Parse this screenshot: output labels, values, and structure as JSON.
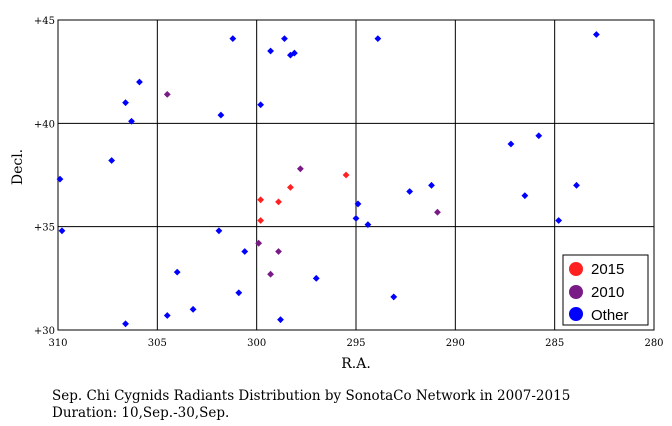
{
  "chart_data": {
    "type": "scatter",
    "xlabel": "R.A.",
    "ylabel": "Decl.",
    "xlim": [
      310,
      280
    ],
    "ylim": [
      30,
      45
    ],
    "x_reversed": true,
    "x_ticks": [
      310,
      305,
      300,
      295,
      290,
      285,
      280
    ],
    "x_tick_labels": [
      "310",
      "305",
      "300",
      "295",
      "290",
      "285",
      "280"
    ],
    "y_ticks": [
      30,
      35,
      40,
      45
    ],
    "y_tick_labels": [
      "+30",
      "+35",
      "+40",
      "+45"
    ],
    "grid": true,
    "legend_position": "bottom-right",
    "series": [
      {
        "name": "2015",
        "color": "#ff2020",
        "points": [
          [
            299.8,
            36.3
          ],
          [
            299.8,
            35.3
          ],
          [
            298.9,
            36.2
          ],
          [
            298.3,
            36.9
          ],
          [
            295.5,
            37.5
          ]
        ]
      },
      {
        "name": "2010",
        "color": "#7a1a86",
        "points": [
          [
            304.5,
            41.4
          ],
          [
            297.8,
            37.8
          ],
          [
            299.9,
            34.2
          ],
          [
            298.9,
            33.8
          ],
          [
            299.3,
            32.7
          ],
          [
            290.9,
            35.7
          ]
        ]
      },
      {
        "name": "Other",
        "color": "#0000ff",
        "points": [
          [
            309.9,
            37.3
          ],
          [
            309.8,
            34.8
          ],
          [
            307.3,
            38.2
          ],
          [
            306.6,
            41.0
          ],
          [
            306.3,
            40.1
          ],
          [
            305.9,
            42.0
          ],
          [
            304.5,
            30.7
          ],
          [
            306.6,
            30.3
          ],
          [
            304.0,
            32.8
          ],
          [
            303.2,
            31.0
          ],
          [
            301.8,
            40.4
          ],
          [
            301.9,
            34.8
          ],
          [
            301.2,
            44.1
          ],
          [
            300.9,
            31.8
          ],
          [
            300.6,
            33.8
          ],
          [
            299.8,
            40.9
          ],
          [
            299.3,
            43.5
          ],
          [
            298.6,
            44.1
          ],
          [
            298.3,
            43.3
          ],
          [
            298.1,
            43.4
          ],
          [
            298.8,
            30.5
          ],
          [
            297.0,
            32.5
          ],
          [
            294.9,
            36.1
          ],
          [
            295.0,
            35.4
          ],
          [
            294.4,
            35.1
          ],
          [
            293.9,
            44.1
          ],
          [
            293.1,
            31.6
          ],
          [
            292.3,
            36.7
          ],
          [
            291.2,
            37.0
          ],
          [
            287.2,
            39.0
          ],
          [
            286.5,
            36.5
          ],
          [
            285.8,
            39.4
          ],
          [
            284.8,
            35.3
          ],
          [
            283.9,
            37.0
          ],
          [
            282.9,
            44.3
          ]
        ]
      }
    ],
    "caption": [
      "Sep. Chi Cygnids Radiants Distribution by SonotaCo Network in 2007-2015",
      "Duration: 10,Sep.-30,Sep."
    ]
  }
}
